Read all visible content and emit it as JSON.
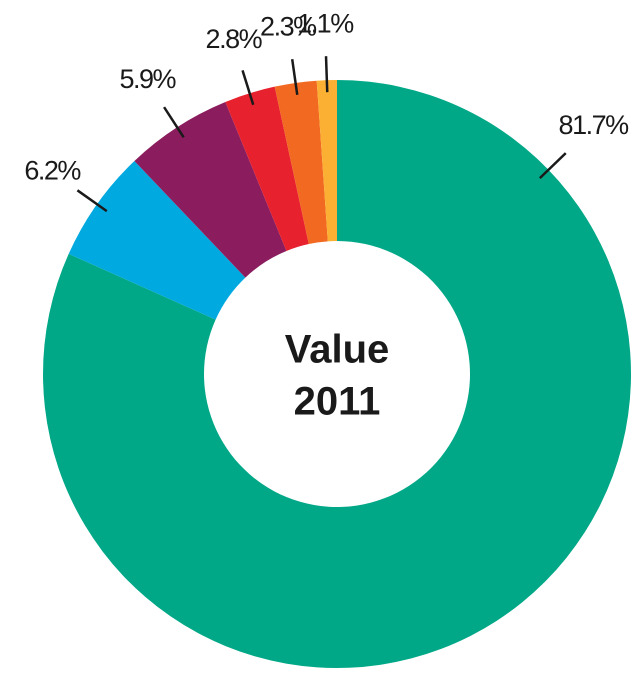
{
  "chart_data": {
    "type": "donut",
    "center_label": [
      "Value",
      "2011"
    ],
    "categories": [
      null,
      null,
      null,
      null,
      null,
      null
    ],
    "values": [
      81.7,
      6.2,
      5.9,
      2.8,
      2.3,
      1.1
    ],
    "value_labels": [
      "81.7%",
      "6.2%",
      "5.9%",
      "2.8%",
      "2.3%",
      "1.1%"
    ],
    "colors": [
      "#00a887",
      "#00a9e0",
      "#8b1d5e",
      "#e8212e",
      "#f26a21",
      "#fbb034"
    ]
  }
}
